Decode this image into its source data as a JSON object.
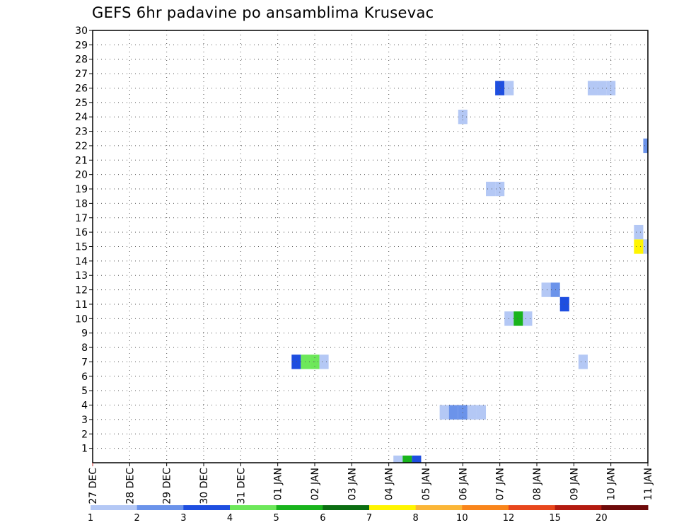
{
  "chart_data": {
    "type": "heatmap",
    "title": "GEFS 6hr padavine po ansamblima Krusevac",
    "xlabel": "",
    "ylabel": "",
    "y_ticks": [
      1,
      2,
      3,
      4,
      5,
      6,
      7,
      8,
      9,
      10,
      11,
      12,
      13,
      14,
      15,
      16,
      17,
      18,
      19,
      20,
      21,
      22,
      23,
      24,
      25,
      26,
      27,
      28,
      29,
      30
    ],
    "ylim": [
      0,
      30
    ],
    "x_ticks": [
      "27 DEC",
      "28 DEC",
      "29 DEC",
      "30 DEC",
      "31 DEC",
      "01 JAN",
      "02 JAN",
      "03 JAN",
      "04 JAN",
      "05 JAN",
      "06 JAN",
      "07 JAN",
      "08 JAN",
      "09 JAN",
      "10 JAN",
      "11 JAN"
    ],
    "xlim_days": [
      0,
      15
    ],
    "grid": true,
    "colorbar": {
      "ticks": [
        "1",
        "2",
        "3",
        "4",
        "5",
        "6",
        "7",
        "8",
        "10",
        "12",
        "15",
        "20"
      ],
      "colors": [
        "#b4c8f5",
        "#6b93ea",
        "#1e4ee0",
        "#6de85a",
        "#19b41c",
        "#0b6e12",
        "#fff500",
        "#fbb637",
        "#f9851b",
        "#e8471c",
        "#b41b10",
        "#6e0a0a"
      ]
    },
    "cells": [
      {
        "t": 8.25,
        "member": 0,
        "value": 1.5
      },
      {
        "t": 8.5,
        "member": 0,
        "value": 5.5
      },
      {
        "t": 8.75,
        "member": 0,
        "value": 3.5
      },
      {
        "t": 9.5,
        "member": 3.5,
        "value": 1.5
      },
      {
        "t": 9.75,
        "member": 3.5,
        "value": 2.5
      },
      {
        "t": 10.0,
        "member": 3.5,
        "value": 2.5
      },
      {
        "t": 10.25,
        "member": 3.5,
        "value": 1.5
      },
      {
        "t": 10.5,
        "member": 3.5,
        "value": 1.5
      },
      {
        "t": 5.5,
        "member": 7,
        "value": 3.5
      },
      {
        "t": 5.75,
        "member": 7,
        "value": 4.5
      },
      {
        "t": 6.0,
        "member": 7,
        "value": 4.5
      },
      {
        "t": 6.25,
        "member": 7,
        "value": 1.5
      },
      {
        "t": 13.25,
        "member": 7,
        "value": 1.5
      },
      {
        "t": 11.25,
        "member": 10,
        "value": 1.5
      },
      {
        "t": 11.5,
        "member": 10,
        "value": 5.5
      },
      {
        "t": 11.75,
        "member": 10,
        "value": 1.5
      },
      {
        "t": 12.75,
        "member": 11,
        "value": 3.5
      },
      {
        "t": 12.25,
        "member": 12,
        "value": 1.5
      },
      {
        "t": 12.5,
        "member": 12,
        "value": 2.5
      },
      {
        "t": 14.75,
        "member": 15,
        "value": 7.5
      },
      {
        "t": 15.0,
        "member": 15,
        "value": 1.5
      },
      {
        "t": 14.75,
        "member": 16,
        "value": 1.5
      },
      {
        "t": 10.75,
        "member": 19,
        "value": 1.5
      },
      {
        "t": 11.0,
        "member": 19,
        "value": 1.5
      },
      {
        "t": 15.0,
        "member": 22,
        "value": 2.5
      },
      {
        "t": 10.0,
        "member": 24,
        "value": 1.5
      },
      {
        "t": 11.0,
        "member": 26,
        "value": 3.5
      },
      {
        "t": 11.25,
        "member": 26,
        "value": 1.5
      },
      {
        "t": 13.5,
        "member": 26,
        "value": 1.5
      },
      {
        "t": 13.75,
        "member": 26,
        "value": 1.5
      },
      {
        "t": 14.0,
        "member": 26,
        "value": 1.5
      }
    ]
  }
}
